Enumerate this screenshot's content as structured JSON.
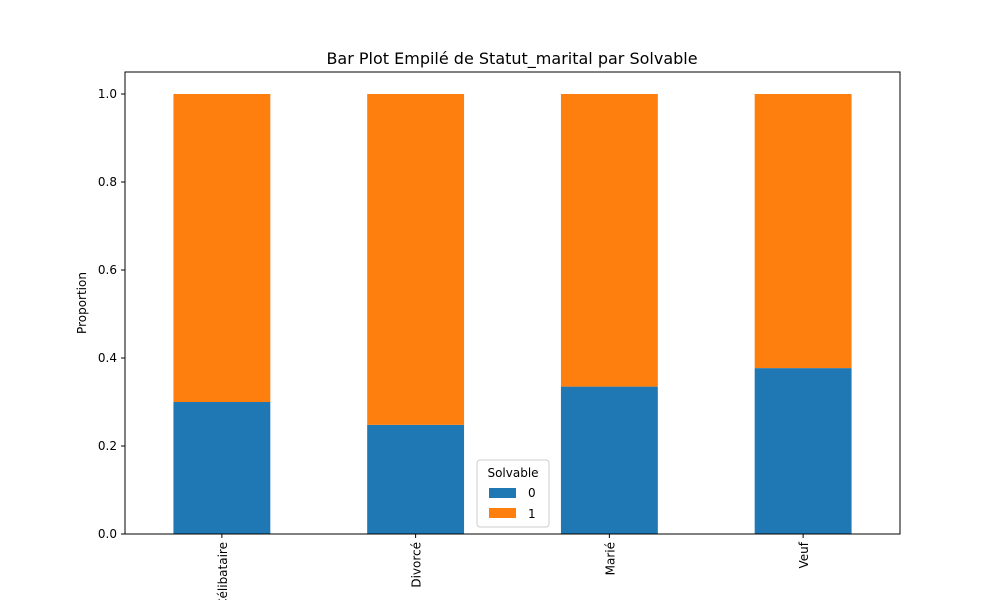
{
  "chart_data": {
    "type": "bar",
    "stacked": true,
    "title": "Bar Plot Empilé de Statut_marital par Solvable",
    "xlabel": "",
    "ylabel": "Proportion",
    "categories": [
      "Célibataire",
      "Divorcé",
      "Marié",
      "Veuf"
    ],
    "series": [
      {
        "name": "0",
        "values": [
          0.3,
          0.248,
          0.335,
          0.377
        ],
        "color": "#1f77b4"
      },
      {
        "name": "1",
        "values": [
          0.7,
          0.752,
          0.665,
          0.623
        ],
        "color": "#ff7f0e"
      }
    ],
    "ylim": [
      0,
      1.05
    ],
    "yticks": [
      "0.0",
      "0.2",
      "0.4",
      "0.6",
      "0.8",
      "1.0"
    ],
    "grid": false,
    "legend": {
      "title": "Solvable",
      "placement": "bottom-center"
    }
  }
}
